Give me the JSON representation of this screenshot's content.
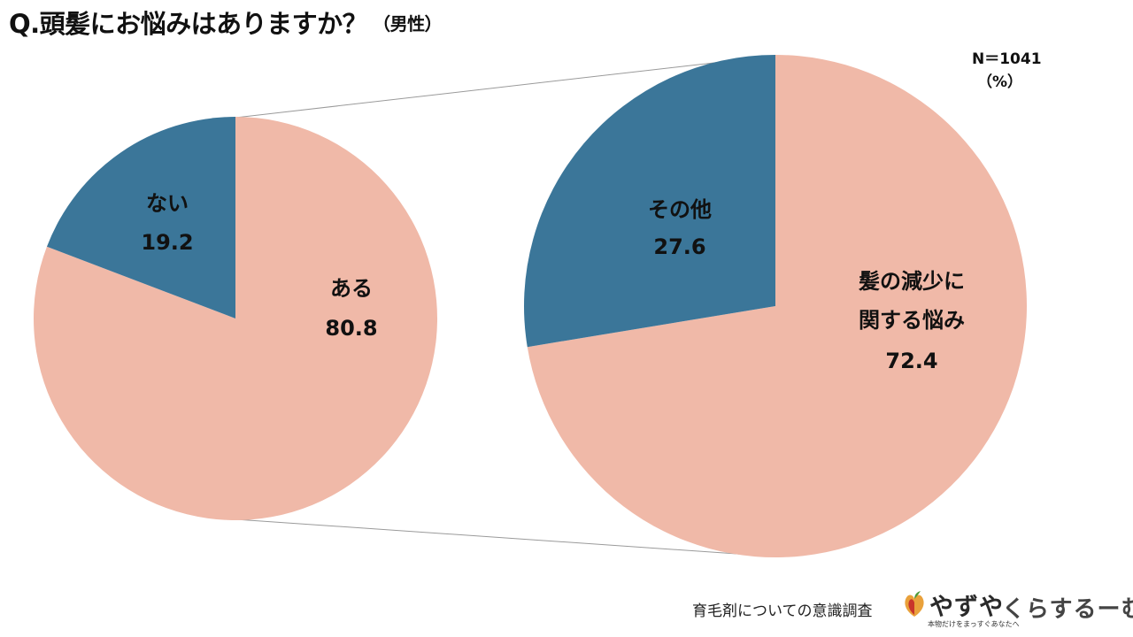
{
  "header": {
    "title": "Q.頭髪にお悩みはありますか？",
    "subtitle": "（男性）"
  },
  "meta": {
    "n_label": "N＝1041",
    "unit": "（%）"
  },
  "colors": {
    "salmon": "#F0B9A8",
    "teal": "#3B7699",
    "connector": "#9a9a9a"
  },
  "chart_data": [
    {
      "type": "pie",
      "slices": [
        {
          "label": "ある",
          "value": 80.8,
          "color": "#F0B9A8"
        },
        {
          "label": "ない",
          "value": 19.2,
          "color": "#3B7699"
        }
      ]
    },
    {
      "type": "pie",
      "slices": [
        {
          "label": "髪の減少に関する悩み",
          "label_lines": [
            "髪の減少に",
            "関する悩み"
          ],
          "value": 72.4,
          "color": "#F0B9A8"
        },
        {
          "label": "その他",
          "value": 27.6,
          "color": "#3B7699"
        }
      ]
    }
  ],
  "footer": {
    "survey": "育毛剤についての意識調査",
    "logo1_name": "やずや",
    "logo1_tagline": "本物だけをまっすぐあなたへ",
    "logo2_name": "くらするーむ"
  }
}
